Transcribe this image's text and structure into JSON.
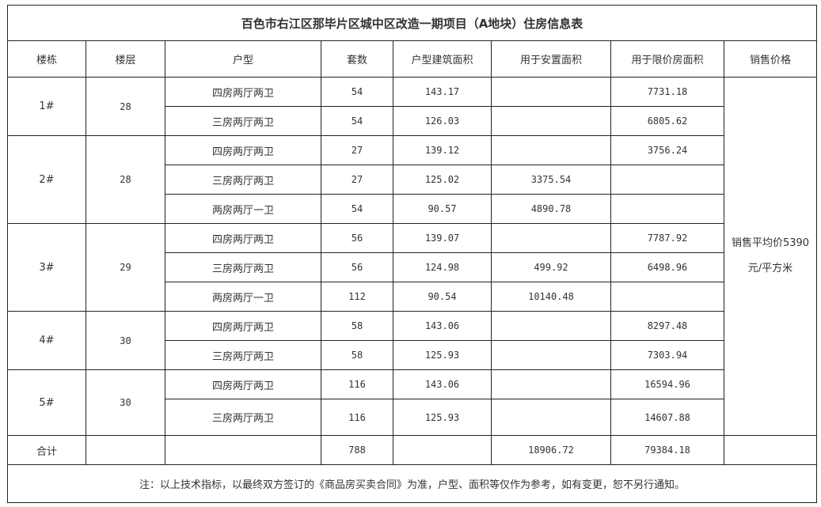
{
  "title": "百色市右江区那毕片区城中区改造一期项目（A地块）住房信息表",
  "headers": [
    "楼栋",
    "楼层",
    "户型",
    "套数",
    "户型建筑面积",
    "用于安置面积",
    "用于限价房面积",
    "销售价格"
  ],
  "buildings": [
    {
      "name": "1#",
      "floors": "28",
      "rows": [
        {
          "type": "四房两厅两卫",
          "count": "54",
          "area": "143.17",
          "resettle": "",
          "limited": "7731.18"
        },
        {
          "type": "三房两厅两卫",
          "count": "54",
          "area": "126.03",
          "resettle": "",
          "limited": "6805.62"
        }
      ]
    },
    {
      "name": "2#",
      "floors": "28",
      "rows": [
        {
          "type": "四房两厅两卫",
          "count": "27",
          "area": "139.12",
          "resettle": "",
          "limited": "3756.24"
        },
        {
          "type": "三房两厅两卫",
          "count": "27",
          "area": "125.02",
          "resettle": "3375.54",
          "limited": ""
        },
        {
          "type": "两房两厅一卫",
          "count": "54",
          "area": "90.57",
          "resettle": "4890.78",
          "limited": ""
        }
      ]
    },
    {
      "name": "3#",
      "floors": "29",
      "rows": [
        {
          "type": "四房两厅两卫",
          "count": "56",
          "area": "139.07",
          "resettle": "",
          "limited": "7787.92"
        },
        {
          "type": "三房两厅两卫",
          "count": "56",
          "area": "124.98",
          "resettle": "499.92",
          "limited": "6498.96"
        },
        {
          "type": "两房两厅一卫",
          "count": "112",
          "area": "90.54",
          "resettle": "10140.48",
          "limited": ""
        }
      ]
    },
    {
      "name": "4#",
      "floors": "30",
      "rows": [
        {
          "type": "四房两厅两卫",
          "count": "58",
          "area": "143.06",
          "resettle": "",
          "limited": "8297.48"
        },
        {
          "type": "三房两厅两卫",
          "count": "58",
          "area": "125.93",
          "resettle": "",
          "limited": "7303.94"
        }
      ]
    },
    {
      "name": "5#",
      "floors": "30",
      "rows": [
        {
          "type": "四房两厅两卫",
          "count": "116",
          "area": "143.06",
          "resettle": "",
          "limited": "16594.96"
        },
        {
          "type": "三房两厅两卫",
          "count": "116",
          "area": "125.93",
          "resettle": "",
          "limited": "14607.88"
        }
      ]
    }
  ],
  "price": "销售平均价5390元/平方米",
  "total": {
    "label": "合计",
    "count": "788",
    "resettle": "18906.72",
    "limited": "79384.18"
  },
  "note": "注：以上技术指标，以最终双方签订的《商品房买卖合同》为准，户型、面积等仅作为参考，如有变更，恕不另行通知。"
}
